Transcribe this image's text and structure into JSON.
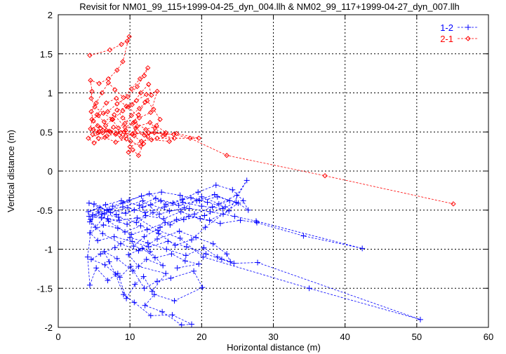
{
  "chart_data": {
    "type": "line",
    "title": "Revisit for NM01_99_115+1999-04-25_dyn_004.llh & NM02_99_117+1999-04-27_dyn_007.llh",
    "xlabel": "Horizontal distance (m)",
    "ylabel": "Vertical distance (m)",
    "xlim": [
      0,
      60
    ],
    "ylim": [
      -2,
      2
    ],
    "xticks": [
      "0",
      "10",
      "20",
      "30",
      "40",
      "50",
      "60"
    ],
    "yticks": [
      "-2",
      "-1.5",
      "-1",
      "-0.5",
      "0",
      "0.5",
      "1",
      "1.5",
      "2"
    ],
    "grid": true,
    "legend_position": "top-right",
    "series": [
      {
        "name": "1-2",
        "color": "#0000ff",
        "marker": "plus",
        "line": "dashed",
        "points": [
          [
            4.3,
            -0.41
          ],
          [
            6.8,
            -0.5
          ],
          [
            9.0,
            -0.46
          ],
          [
            11.8,
            -0.38
          ],
          [
            14.1,
            -0.55
          ],
          [
            17.6,
            -0.47
          ],
          [
            20.0,
            -0.33
          ],
          [
            22.4,
            -0.42
          ],
          [
            24.9,
            -0.31
          ],
          [
            26.3,
            -0.12
          ],
          [
            23.8,
            -0.51
          ],
          [
            21.1,
            -0.63
          ],
          [
            18.2,
            -0.58
          ],
          [
            15.6,
            -0.69
          ],
          [
            13.2,
            -0.53
          ],
          [
            10.9,
            -0.66
          ],
          [
            8.4,
            -0.59
          ],
          [
            6.1,
            -0.55
          ],
          [
            4.5,
            -0.62
          ],
          [
            5.2,
            -0.72
          ],
          [
            7.6,
            -0.45
          ],
          [
            9.9,
            -0.37
          ],
          [
            12.7,
            -0.29
          ],
          [
            15.0,
            -0.43
          ],
          [
            17.3,
            -0.36
          ],
          [
            19.5,
            -0.27
          ],
          [
            22.0,
            -0.18
          ],
          [
            24.3,
            -0.24
          ],
          [
            25.8,
            -0.38
          ],
          [
            26.5,
            -0.5
          ],
          [
            25.1,
            -0.41
          ],
          [
            23.0,
            -0.55
          ],
          [
            20.5,
            -0.72
          ],
          [
            18.6,
            -0.88
          ],
          [
            16.3,
            -0.95
          ],
          [
            14.0,
            -0.8
          ],
          [
            11.5,
            -0.7
          ],
          [
            9.3,
            -0.78
          ],
          [
            7.0,
            -0.64
          ],
          [
            5.6,
            -0.52
          ],
          [
            4.4,
            -0.65
          ],
          [
            6.2,
            -0.8
          ],
          [
            8.7,
            -0.93
          ],
          [
            11.2,
            -1.02
          ],
          [
            13.8,
            -0.87
          ],
          [
            16.9,
            -0.77
          ],
          [
            19.2,
            -0.85
          ],
          [
            21.6,
            -0.93
          ],
          [
            23.5,
            -1.06
          ],
          [
            24.0,
            -1.16
          ],
          [
            22.2,
            -1.1
          ],
          [
            20.3,
            -0.98
          ],
          [
            17.8,
            -1.08
          ],
          [
            15.1,
            -1.0
          ],
          [
            12.5,
            -0.92
          ],
          [
            10.0,
            -0.85
          ],
          [
            7.9,
            -0.98
          ],
          [
            5.9,
            -1.06
          ],
          [
            4.6,
            -1.13
          ],
          [
            6.5,
            -1.2
          ],
          [
            8.6,
            -1.36
          ],
          [
            10.1,
            -1.22
          ],
          [
            12.0,
            -1.5
          ],
          [
            13.8,
            -1.41
          ],
          [
            15.7,
            -1.37
          ],
          [
            18.9,
            -1.28
          ],
          [
            20.1,
            -1.49
          ],
          [
            16.2,
            -1.66
          ],
          [
            13.4,
            -1.58
          ],
          [
            12.1,
            -1.72
          ],
          [
            14.5,
            -1.8
          ],
          [
            17.2,
            -1.97
          ],
          [
            18.6,
            -1.96
          ],
          [
            15.9,
            -1.84
          ],
          [
            12.9,
            -1.85
          ],
          [
            10.6,
            -1.68
          ],
          [
            9.1,
            -1.58
          ],
          [
            8.0,
            -1.32
          ],
          [
            7.1,
            -1.16
          ],
          [
            6.4,
            -1.03
          ],
          [
            8.2,
            -1.12
          ],
          [
            10.4,
            -1.28
          ],
          [
            12.3,
            -1.13
          ],
          [
            14.6,
            -1.21
          ],
          [
            12.8,
            -1.03
          ],
          [
            10.5,
            -0.96
          ],
          [
            12.0,
            -0.84
          ],
          [
            14.2,
            -0.72
          ],
          [
            16.5,
            -0.62
          ],
          [
            19.0,
            -0.55
          ],
          [
            21.5,
            -0.46
          ],
          [
            23.9,
            -0.38
          ],
          [
            21.8,
            -0.3
          ],
          [
            19.3,
            -0.38
          ],
          [
            16.8,
            -0.44
          ],
          [
            14.3,
            -0.38
          ],
          [
            11.8,
            -0.46
          ],
          [
            9.4,
            -0.54
          ],
          [
            7.1,
            -0.49
          ],
          [
            4.8,
            -0.56
          ],
          [
            6.9,
            -0.61
          ],
          [
            9.6,
            -0.68
          ],
          [
            12.2,
            -0.57
          ],
          [
            14.7,
            -0.61
          ],
          [
            17.1,
            -0.52
          ],
          [
            19.8,
            -0.61
          ],
          [
            22.6,
            -0.67
          ],
          [
            25.4,
            -0.63
          ],
          [
            27.7,
            -0.66
          ],
          [
            34.2,
            -0.83
          ],
          [
            42.4,
            -0.99
          ],
          [
            27.6,
            -0.64
          ],
          [
            24.6,
            -0.58
          ],
          [
            21.2,
            -0.52
          ],
          [
            18.3,
            -0.48
          ],
          [
            15.5,
            -0.51
          ],
          [
            12.9,
            -0.43
          ],
          [
            10.6,
            -0.5
          ],
          [
            8.1,
            -0.56
          ],
          [
            5.8,
            -0.47
          ],
          [
            4.2,
            -0.52
          ],
          [
            6.6,
            -0.43
          ],
          [
            8.8,
            -0.38
          ],
          [
            11.3,
            -0.44
          ],
          [
            13.6,
            -0.35
          ],
          [
            16.0,
            -0.41
          ],
          [
            18.5,
            -0.34
          ],
          [
            20.8,
            -0.4
          ],
          [
            23.3,
            -0.46
          ],
          [
            20.4,
            -0.57
          ],
          [
            17.5,
            -0.62
          ],
          [
            14.9,
            -0.66
          ],
          [
            12.4,
            -0.75
          ],
          [
            10.2,
            -0.81
          ],
          [
            8.3,
            -0.73
          ],
          [
            6.3,
            -0.69
          ],
          [
            4.4,
            -0.79
          ],
          [
            5.5,
            -0.89
          ],
          [
            7.8,
            -0.84
          ],
          [
            10.3,
            -0.9
          ],
          [
            12.6,
            -0.97
          ],
          [
            15.3,
            -0.9
          ],
          [
            17.9,
            -0.97
          ],
          [
            20.6,
            -1.06
          ],
          [
            22.8,
            -1.13
          ],
          [
            24.5,
            -1.18
          ],
          [
            27.8,
            -1.17
          ],
          [
            50.5,
            -1.9
          ],
          [
            35.0,
            -1.5
          ],
          [
            20.2,
            -1.1
          ],
          [
            17.0,
            -0.86
          ],
          [
            13.9,
            -0.76
          ],
          [
            11.0,
            -0.6
          ],
          [
            8.5,
            -0.63
          ],
          [
            6.0,
            -0.6
          ],
          [
            4.3,
            -0.58
          ],
          [
            6.4,
            -0.54
          ],
          [
            9.0,
            -0.41
          ],
          [
            11.6,
            -0.32
          ],
          [
            14.4,
            -0.27
          ],
          [
            17.0,
            -0.31
          ],
          [
            19.7,
            -0.38
          ],
          [
            22.2,
            -0.33
          ],
          [
            24.8,
            -0.4
          ],
          [
            22.9,
            -0.48
          ],
          [
            20.0,
            -0.45
          ],
          [
            17.4,
            -0.4
          ],
          [
            14.8,
            -0.46
          ],
          [
            12.1,
            -0.53
          ],
          [
            9.7,
            -0.47
          ],
          [
            7.3,
            -0.53
          ],
          [
            5.0,
            -0.42
          ],
          [
            4.1,
            -1.1
          ],
          [
            4.4,
            -1.46
          ],
          [
            5.3,
            -1.24
          ],
          [
            6.9,
            -1.4
          ],
          [
            8.3,
            -1.31
          ],
          [
            9.5,
            -1.63
          ],
          [
            10.7,
            -1.45
          ],
          [
            11.9,
            -1.35
          ],
          [
            13.1,
            -1.54
          ],
          [
            15.0,
            -1.31
          ],
          [
            11.2,
            -1.22
          ],
          [
            9.8,
            -1.07
          ],
          [
            11.7,
            -0.99
          ],
          [
            13.5,
            -1.11
          ],
          [
            15.8,
            -1.06
          ],
          [
            17.7,
            -1.15
          ],
          [
            19.6,
            -1.19
          ],
          [
            16.6,
            -1.24
          ]
        ]
      },
      {
        "name": "2-1",
        "color": "#ff0000",
        "marker": "diamond",
        "line": "dashed",
        "points": [
          [
            4.4,
            1.48
          ],
          [
            7.2,
            1.55
          ],
          [
            8.8,
            1.62
          ],
          [
            9.6,
            1.66
          ],
          [
            9.9,
            1.72
          ],
          [
            9.0,
            1.4
          ],
          [
            8.2,
            1.29
          ],
          [
            7.0,
            1.18
          ],
          [
            5.7,
            1.12
          ],
          [
            4.5,
            1.16
          ],
          [
            4.7,
            1.02
          ],
          [
            4.6,
            0.93
          ],
          [
            5.1,
            0.82
          ],
          [
            6.3,
            0.74
          ],
          [
            7.6,
            0.66
          ],
          [
            9.0,
            0.77
          ],
          [
            10.3,
            0.85
          ],
          [
            11.5,
            1.0
          ],
          [
            12.6,
            1.11
          ],
          [
            13.0,
            0.97
          ],
          [
            12.1,
            0.88
          ],
          [
            11.2,
            0.72
          ],
          [
            10.5,
            0.62
          ],
          [
            9.4,
            0.52
          ],
          [
            8.0,
            0.47
          ],
          [
            6.7,
            0.52
          ],
          [
            5.5,
            0.58
          ],
          [
            4.5,
            0.54
          ],
          [
            4.7,
            0.66
          ],
          [
            5.6,
            0.71
          ],
          [
            6.9,
            0.76
          ],
          [
            8.2,
            0.86
          ],
          [
            9.7,
            0.95
          ],
          [
            11.0,
            1.08
          ],
          [
            12.0,
            1.22
          ],
          [
            12.5,
            1.32
          ],
          [
            11.4,
            1.18
          ],
          [
            10.2,
            1.05
          ],
          [
            9.1,
            0.94
          ],
          [
            7.9,
            1.04
          ],
          [
            7.0,
            1.13
          ],
          [
            6.1,
            1.0
          ],
          [
            5.3,
            0.87
          ],
          [
            4.6,
            0.76
          ],
          [
            4.9,
            0.64
          ],
          [
            5.9,
            0.55
          ],
          [
            7.3,
            0.5
          ],
          [
            8.8,
            0.43
          ],
          [
            10.1,
            0.38
          ],
          [
            11.5,
            0.32
          ],
          [
            12.5,
            0.44
          ],
          [
            13.5,
            0.55
          ],
          [
            14.2,
            0.66
          ],
          [
            13.3,
            0.79
          ],
          [
            12.4,
            0.9
          ],
          [
            11.3,
            0.8
          ],
          [
            10.2,
            0.71
          ],
          [
            9.3,
            0.61
          ],
          [
            8.4,
            0.55
          ],
          [
            7.5,
            0.66
          ],
          [
            6.6,
            0.58
          ],
          [
            5.7,
            0.5
          ],
          [
            4.8,
            0.47
          ],
          [
            5.6,
            0.42
          ],
          [
            6.8,
            0.45
          ],
          [
            8.1,
            0.48
          ],
          [
            9.4,
            0.45
          ],
          [
            10.7,
            0.49
          ],
          [
            12.0,
            0.46
          ],
          [
            13.4,
            0.49
          ],
          [
            14.9,
            0.47
          ],
          [
            16.5,
            0.48
          ],
          [
            19.6,
            0.42
          ],
          [
            13.8,
            0.42
          ],
          [
            11.6,
            0.38
          ],
          [
            10.0,
            0.31
          ],
          [
            9.8,
            0.24
          ],
          [
            10.4,
            0.27
          ],
          [
            11.2,
            0.2
          ],
          [
            11.9,
            0.35
          ],
          [
            10.6,
            0.45
          ],
          [
            9.2,
            0.5
          ],
          [
            7.7,
            0.56
          ],
          [
            6.2,
            0.49
          ],
          [
            4.2,
            0.42
          ],
          [
            5.0,
            0.36
          ],
          [
            6.5,
            0.43
          ],
          [
            8.0,
            0.37
          ],
          [
            9.5,
            0.41
          ],
          [
            11.0,
            0.57
          ],
          [
            12.8,
            0.62
          ],
          [
            14.6,
            0.45
          ],
          [
            16.2,
            0.42
          ],
          [
            15.5,
            0.38
          ],
          [
            13.0,
            0.4
          ],
          [
            10.8,
            0.55
          ],
          [
            9.0,
            0.68
          ],
          [
            8.2,
            0.78
          ],
          [
            9.8,
            0.82
          ],
          [
            11.3,
            0.68
          ],
          [
            12.9,
            0.75
          ],
          [
            13.8,
            1.02
          ],
          [
            12.3,
            0.98
          ],
          [
            10.9,
            0.9
          ],
          [
            9.5,
            0.83
          ],
          [
            8.1,
            0.93
          ],
          [
            6.7,
            0.87
          ],
          [
            5.4,
            0.72
          ],
          [
            6.4,
            0.63
          ],
          [
            7.8,
            0.72
          ],
          [
            9.3,
            0.56
          ],
          [
            10.7,
            0.63
          ],
          [
            12.2,
            0.53
          ],
          [
            13.7,
            0.58
          ],
          [
            15.0,
            0.49
          ],
          [
            12.6,
            0.49
          ],
          [
            10.3,
            0.47
          ],
          [
            8.7,
            0.49
          ],
          [
            7.1,
            0.51
          ],
          [
            5.5,
            0.49
          ],
          [
            4.9,
            0.53
          ],
          [
            16.1,
            0.47
          ],
          [
            18.4,
            0.42
          ],
          [
            23.5,
            0.2
          ],
          [
            37.2,
            -0.06
          ],
          [
            55.1,
            -0.42
          ]
        ]
      }
    ]
  }
}
